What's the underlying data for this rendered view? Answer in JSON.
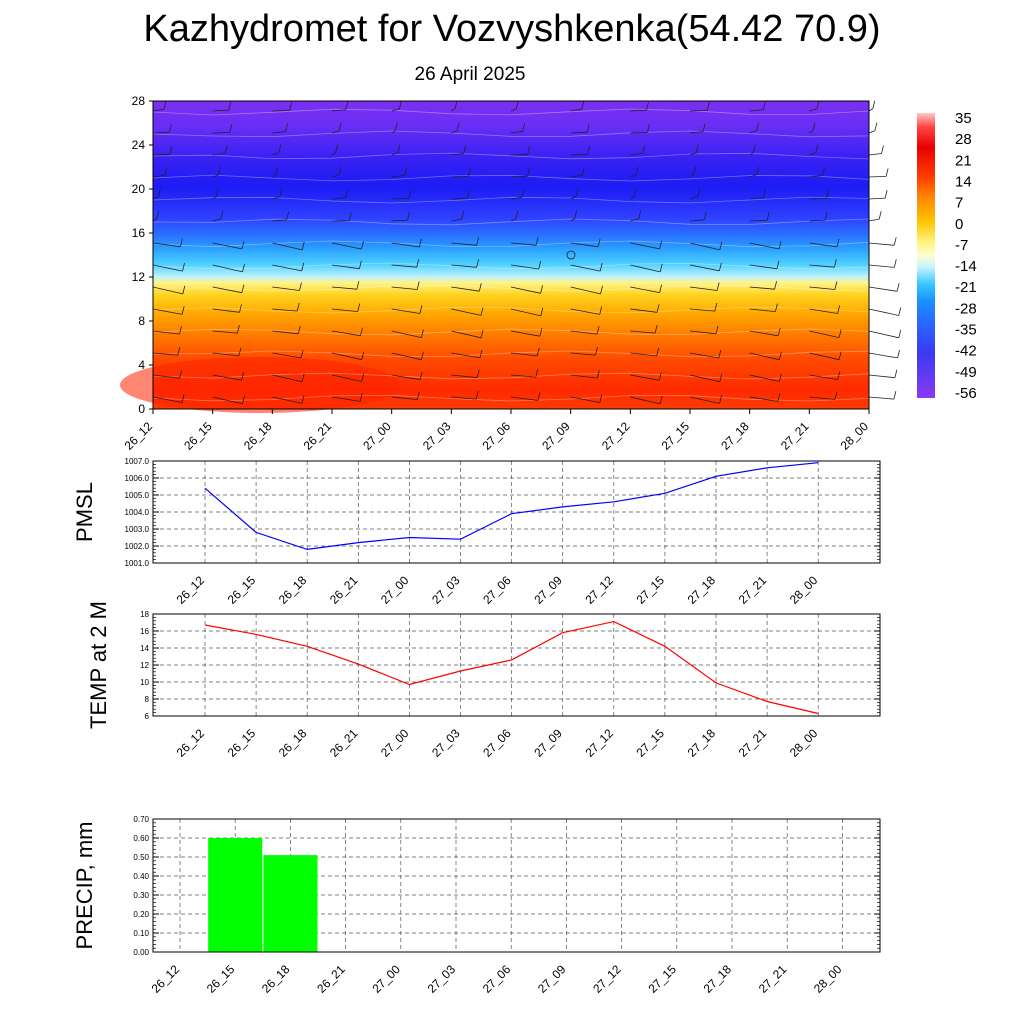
{
  "title": "Kazhydromet for Vozvyshkenka(54.42 70.9)",
  "subtitle": "26 April 2025",
  "colors": {
    "pmsl_line": "#0000ff",
    "temp_line": "#ff0000",
    "precip_bar": "#00ff00"
  },
  "chart_data": [
    {
      "type": "heatmap",
      "name_hint": "vertical-temperature-cross-section",
      "x_tick_labels": [
        "26_12",
        "26_15",
        "26_18",
        "26_21",
        "27_00",
        "27_03",
        "27_06",
        "27_09",
        "27_12",
        "27_15",
        "27_18",
        "27_21",
        "28_00"
      ],
      "y_tick_labels": [
        "0",
        "4",
        "8",
        "12",
        "16",
        "20",
        "24",
        "28"
      ],
      "ylim": [
        0,
        28
      ],
      "colorbar_labels": [
        "35",
        "28",
        "21",
        "14",
        "7",
        "0",
        "-7",
        "-14",
        "-21",
        "-28",
        "-35",
        "-42",
        "-49",
        "-56"
      ],
      "overlay": "wind barbs"
    },
    {
      "type": "line",
      "ylabel": "PMSL",
      "categories": [
        "26_12",
        "26_15",
        "26_18",
        "26_21",
        "27_00",
        "27_03",
        "27_06",
        "27_09",
        "27_12",
        "27_15",
        "27_18",
        "27_21",
        "28_00"
      ],
      "values": [
        1005.4,
        1002.8,
        1001.8,
        1002.2,
        1002.5,
        1002.4,
        1003.9,
        1004.3,
        1004.6,
        1005.1,
        1006.1,
        1006.6,
        1006.9
      ],
      "y_tick_labels": [
        "1001.0",
        "1002.0",
        "1003.0",
        "1004.0",
        "1005.0",
        "1006.0",
        "1007.0"
      ],
      "ylim": [
        1001,
        1007
      ],
      "grid": true
    },
    {
      "type": "line",
      "ylabel": "TEMP at 2 M",
      "categories": [
        "26_12",
        "26_15",
        "26_18",
        "26_21",
        "27_00",
        "27_03",
        "27_06",
        "27_09",
        "27_12",
        "27_15",
        "27_18",
        "27_21",
        "28_00"
      ],
      "values": [
        16.7,
        15.6,
        14.2,
        12.1,
        9.7,
        11.3,
        12.6,
        15.8,
        17.1,
        14.2,
        9.9,
        7.7,
        6.3
      ],
      "y_tick_labels": [
        "6",
        "8",
        "10",
        "12",
        "14",
        "16",
        "18"
      ],
      "ylim": [
        6,
        18
      ],
      "grid": true
    },
    {
      "type": "bar",
      "ylabel": "PRECIP, mm",
      "categories": [
        "26_12",
        "26_15",
        "26_18",
        "26_21",
        "27_00",
        "27_03",
        "27_06",
        "27_09",
        "27_12",
        "27_15",
        "27_18",
        "27_21",
        "28_00"
      ],
      "values": [
        0,
        0.6,
        0.51,
        0,
        0,
        0,
        0,
        0,
        0,
        0,
        0,
        0,
        0
      ],
      "y_tick_labels": [
        "0.00",
        "0.10",
        "0.20",
        "0.30",
        "0.40",
        "0.50",
        "0.60",
        "0.70"
      ],
      "ylim": [
        0,
        0.7
      ],
      "grid": true
    }
  ]
}
